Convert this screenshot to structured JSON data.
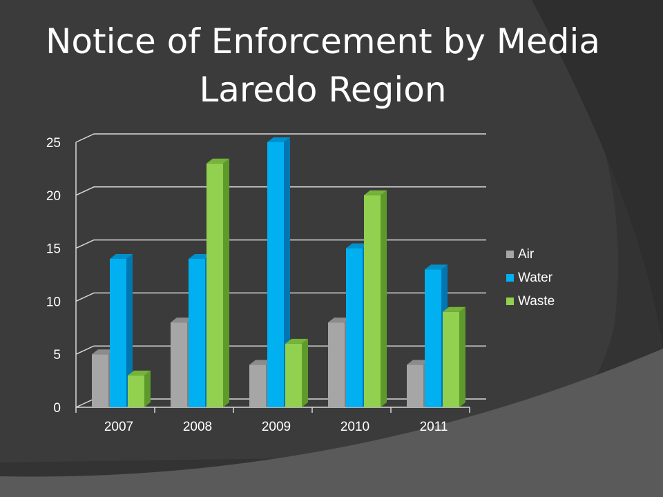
{
  "slide": {
    "title_line1": "Notice of Enforcement by Media",
    "title_line2": "Laredo Region"
  },
  "colors": {
    "background": "#333333",
    "gridline": "#d9d9d9",
    "text": "#ffffff"
  },
  "chart_data": {
    "type": "bar",
    "title": "Notice of Enforcement by Media Laredo Region",
    "categories": [
      "2007",
      "2008",
      "2009",
      "2010",
      "2011"
    ],
    "series": [
      {
        "name": "Air",
        "values": [
          5,
          8,
          4,
          8,
          4
        ],
        "color": "#a6a6a6",
        "side_color": "#7f7f7f",
        "top_color": "#8c8c8c"
      },
      {
        "name": "Water",
        "values": [
          14,
          14,
          25,
          15,
          13
        ],
        "color": "#00b0f0",
        "side_color": "#0077b3",
        "top_color": "#0091cc"
      },
      {
        "name": "Waste",
        "values": [
          3,
          23,
          6,
          20,
          9
        ],
        "color": "#92d050",
        "side_color": "#5e9a2b",
        "top_color": "#76b33a"
      }
    ],
    "ylim": [
      0,
      25
    ],
    "yticks": [
      "0",
      "5",
      "10",
      "15",
      "20",
      "25"
    ],
    "grid": true,
    "legend_position": "right",
    "style": "3d-clustered-column"
  }
}
